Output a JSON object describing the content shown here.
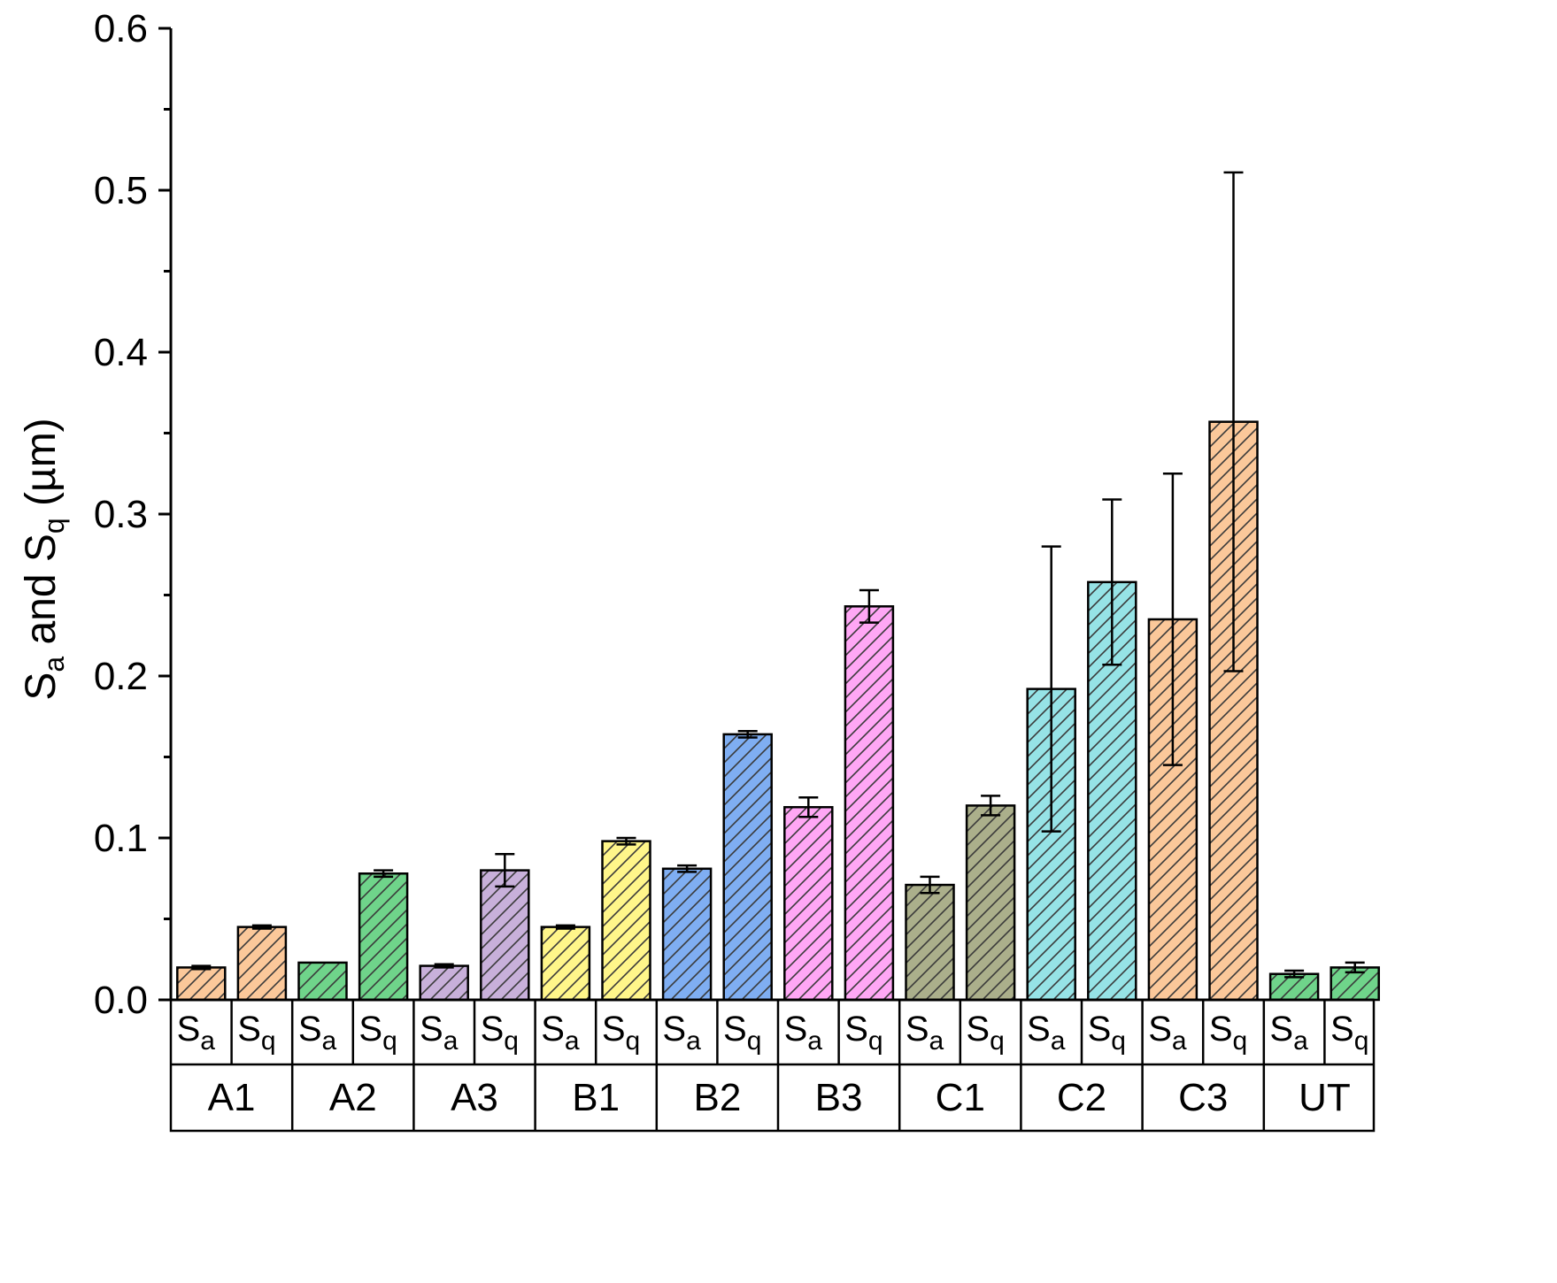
{
  "chart_data": {
    "type": "bar",
    "title": "",
    "xlabel": "",
    "ylabel": "Sa and Sq (µm)",
    "ylabel_parts": {
      "s1": "S",
      "sub1": "a",
      "mid": " and S",
      "sub2": "q",
      "unit": " (µm)"
    },
    "ylim": [
      0,
      0.6
    ],
    "yticks": [
      "0.0",
      "0.1",
      "0.2",
      "0.3",
      "0.4",
      "0.5",
      "0.6"
    ],
    "yticks_values": [
      0,
      0.1,
      0.2,
      0.3,
      0.4,
      0.5,
      0.6
    ],
    "grid": false,
    "metric_labels": {
      "Sa": {
        "base": "S",
        "sub": "a"
      },
      "Sq": {
        "base": "S",
        "sub": "q"
      }
    },
    "groups": [
      {
        "name": "A1",
        "color": "#FBC89A",
        "bars": [
          {
            "metric": "Sa",
            "value": 0.02,
            "error": 0.001
          },
          {
            "metric": "Sq",
            "value": 0.045,
            "error": 0.001
          }
        ]
      },
      {
        "name": "A2",
        "color": "#6FD48A",
        "bars": [
          {
            "metric": "Sa",
            "value": 0.023,
            "error": 0.0
          },
          {
            "metric": "Sq",
            "value": 0.078,
            "error": 0.002
          }
        ]
      },
      {
        "name": "A3",
        "color": "#C8B0DA",
        "bars": [
          {
            "metric": "Sa",
            "value": 0.021,
            "error": 0.001
          },
          {
            "metric": "Sq",
            "value": 0.08,
            "error": 0.01
          }
        ]
      },
      {
        "name": "B1",
        "color": "#FFF68A",
        "bars": [
          {
            "metric": "Sa",
            "value": 0.045,
            "error": 0.001
          },
          {
            "metric": "Sq",
            "value": 0.098,
            "error": 0.002
          }
        ]
      },
      {
        "name": "B2",
        "color": "#7FAEF2",
        "bars": [
          {
            "metric": "Sa",
            "value": 0.081,
            "error": 0.002
          },
          {
            "metric": "Sq",
            "value": 0.164,
            "error": 0.002
          }
        ]
      },
      {
        "name": "B3",
        "color": "#FFA7F5",
        "bars": [
          {
            "metric": "Sa",
            "value": 0.119,
            "error": 0.006
          },
          {
            "metric": "Sq",
            "value": 0.243,
            "error": 0.01
          }
        ]
      },
      {
        "name": "C1",
        "color": "#ABAF8B",
        "bars": [
          {
            "metric": "Sa",
            "value": 0.071,
            "error": 0.005
          },
          {
            "metric": "Sq",
            "value": 0.12,
            "error": 0.006
          }
        ]
      },
      {
        "name": "C2",
        "color": "#96E3E6",
        "bars": [
          {
            "metric": "Sa",
            "value": 0.192,
            "error": 0.088
          },
          {
            "metric": "Sq",
            "value": 0.258,
            "error": 0.051
          }
        ]
      },
      {
        "name": "C3",
        "color": "#FBC89A",
        "bars": [
          {
            "metric": "Sa",
            "value": 0.235,
            "error": 0.09
          },
          {
            "metric": "Sq",
            "value": 0.357,
            "error": 0.154
          }
        ]
      },
      {
        "name": "UT",
        "color": "#6FD48A",
        "bars": [
          {
            "metric": "Sa",
            "value": 0.016,
            "error": 0.002
          },
          {
            "metric": "Sq",
            "value": 0.02,
            "error": 0.003
          }
        ]
      }
    ]
  }
}
